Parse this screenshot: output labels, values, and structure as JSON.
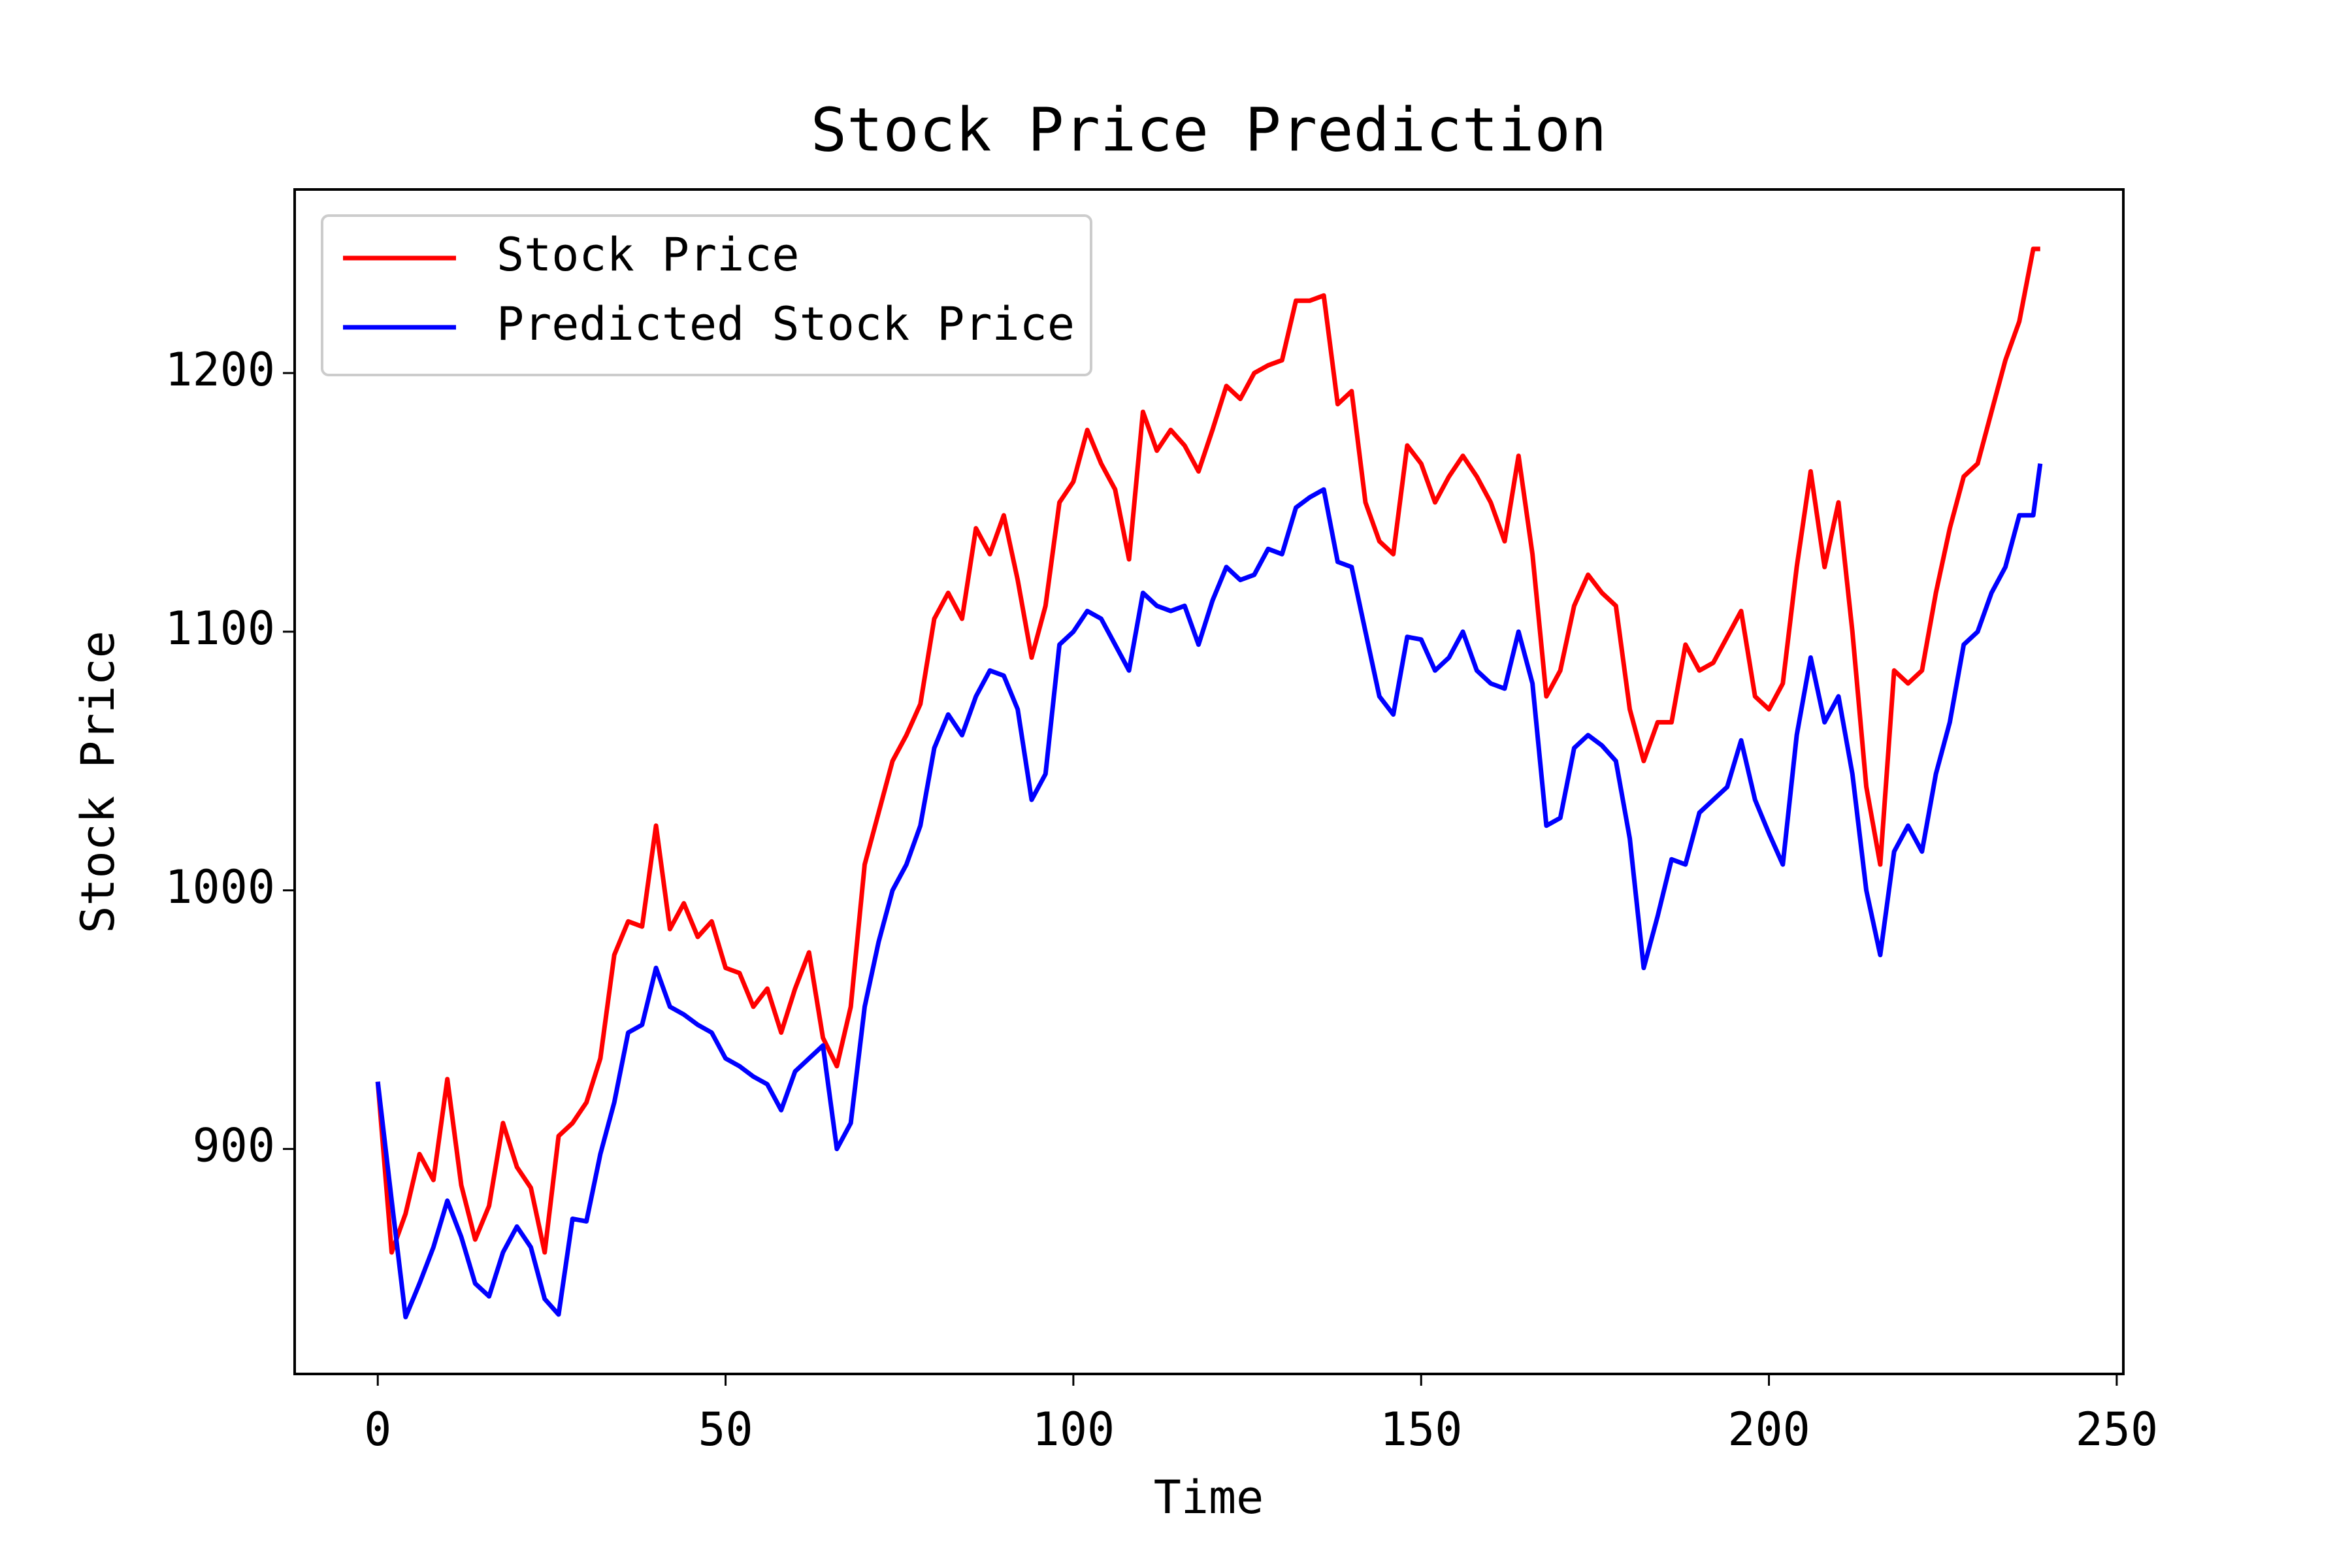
{
  "chart_data": {
    "type": "line",
    "title": "Stock Price Prediction",
    "x_label": "Time",
    "y_label": "Stock Price",
    "x": [
      0,
      2,
      4,
      6,
      8,
      10,
      12,
      14,
      16,
      18,
      20,
      22,
      24,
      26,
      28,
      30,
      32,
      34,
      36,
      38,
      40,
      42,
      44,
      46,
      48,
      50,
      52,
      54,
      56,
      58,
      60,
      62,
      64,
      66,
      68,
      70,
      72,
      74,
      76,
      78,
      80,
      82,
      84,
      86,
      88,
      90,
      92,
      94,
      96,
      98,
      100,
      102,
      104,
      106,
      108,
      110,
      112,
      114,
      116,
      118,
      120,
      122,
      124,
      126,
      128,
      130,
      132,
      134,
      136,
      138,
      140,
      142,
      144,
      146,
      148,
      150,
      152,
      154,
      156,
      158,
      160,
      162,
      164,
      166,
      168,
      170,
      172,
      174,
      176,
      178,
      180,
      182,
      184,
      186,
      188,
      190,
      192,
      194,
      196,
      198,
      200,
      202,
      204,
      206,
      208,
      210,
      212,
      214,
      216,
      218,
      220,
      222,
      224,
      226,
      228,
      230,
      232,
      234,
      236,
      238,
      239
    ],
    "series": [
      {
        "name": "Stock Price",
        "color": "#ff0000",
        "values": [
          926,
          860,
          875,
          898,
          888,
          927,
          886,
          865,
          878,
          910,
          893,
          885,
          860,
          905,
          910,
          918,
          935,
          975,
          988,
          986,
          1025,
          985,
          995,
          982,
          988,
          970,
          968,
          955,
          962,
          945,
          962,
          976,
          943,
          932,
          955,
          1010,
          1030,
          1050,
          1060,
          1072,
          1105,
          1115,
          1105,
          1140,
          1130,
          1145,
          1120,
          1090,
          1110,
          1150,
          1158,
          1178,
          1165,
          1155,
          1128,
          1185,
          1170,
          1178,
          1172,
          1162,
          1178,
          1195,
          1190,
          1200,
          1203,
          1205,
          1228,
          1228,
          1230,
          1188,
          1193,
          1150,
          1135,
          1130,
          1172,
          1165,
          1150,
          1160,
          1168,
          1160,
          1150,
          1135,
          1168,
          1130,
          1075,
          1085,
          1110,
          1122,
          1115,
          1110,
          1070,
          1050,
          1065,
          1065,
          1095,
          1085,
          1088,
          1098,
          1108,
          1075,
          1070,
          1080,
          1125,
          1162,
          1125,
          1150,
          1100,
          1040,
          1010,
          1085,
          1080,
          1085,
          1115,
          1140,
          1160,
          1165,
          1185,
          1205,
          1220,
          1248,
          1248
        ]
      },
      {
        "name": "Predicted Stock Price",
        "color": "#0000ff",
        "values": [
          926,
          880,
          835,
          848,
          862,
          880,
          866,
          848,
          843,
          860,
          870,
          862,
          842,
          836,
          873,
          872,
          898,
          918,
          945,
          948,
          970,
          955,
          952,
          948,
          945,
          935,
          932,
          928,
          925,
          915,
          930,
          935,
          940,
          900,
          910,
          955,
          980,
          1000,
          1010,
          1025,
          1055,
          1068,
          1060,
          1075,
          1085,
          1083,
          1070,
          1035,
          1045,
          1095,
          1100,
          1108,
          1105,
          1095,
          1085,
          1115,
          1110,
          1108,
          1110,
          1095,
          1112,
          1125,
          1120,
          1122,
          1132,
          1130,
          1148,
          1152,
          1155,
          1127,
          1125,
          1100,
          1075,
          1068,
          1098,
          1097,
          1085,
          1090,
          1100,
          1085,
          1080,
          1078,
          1100,
          1080,
          1025,
          1028,
          1055,
          1060,
          1056,
          1050,
          1020,
          970,
          990,
          1012,
          1010,
          1030,
          1035,
          1040,
          1058,
          1035,
          1022,
          1010,
          1060,
          1090,
          1065,
          1075,
          1045,
          1000,
          975,
          1015,
          1025,
          1015,
          1045,
          1065,
          1095,
          1100,
          1115,
          1125,
          1145,
          1145,
          1165
        ]
      }
    ],
    "xlim": [
      -11.95,
      250.95
    ],
    "ylim": [
      813,
      1271
    ],
    "xticks": [
      0,
      50,
      100,
      150,
      200,
      250
    ],
    "yticks": [
      900,
      1000,
      1100,
      1200
    ],
    "grid": false,
    "legend": "upper left"
  }
}
